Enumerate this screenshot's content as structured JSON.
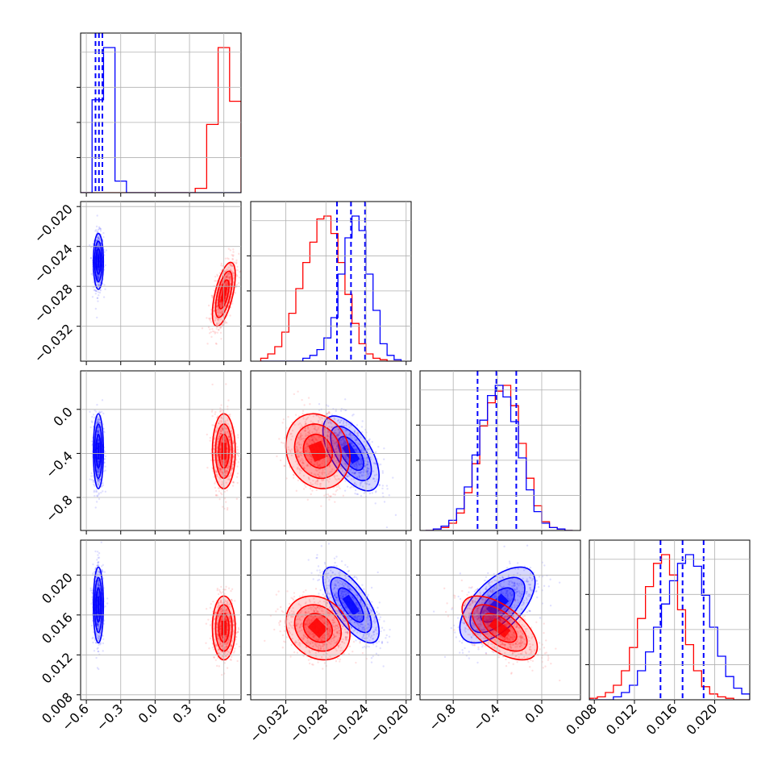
{
  "chart_data": {
    "type": "corner",
    "grid": true,
    "series": [
      {
        "color": "#0000ff"
      },
      {
        "color": "#ff0000"
      }
    ],
    "params": [
      {
        "range": [
          -0.65,
          0.75
        ],
        "ticks": [
          "−0.6",
          "−0.3",
          "0.0",
          "0.3",
          "0.6"
        ],
        "tick_values": [
          -0.6,
          -0.3,
          0.0,
          0.3,
          0.6
        ]
      },
      {
        "range": [
          -0.0355,
          -0.0195
        ],
        "ticks": [
          "−0.032",
          "−0.028",
          "−0.024",
          "−0.020"
        ],
        "tick_values": [
          -0.032,
          -0.028,
          -0.024,
          -0.02
        ]
      },
      {
        "range": [
          -1.1,
          0.35
        ],
        "ticks": [
          "−0.8",
          "−0.4",
          "0.0"
        ],
        "tick_values": [
          -0.8,
          -0.4,
          0.0
        ]
      },
      {
        "range": [
          0.0075,
          0.0235
        ],
        "ticks": [
          "0.008",
          "0.012",
          "0.016",
          "0.020"
        ],
        "tick_values": [
          0.008,
          0.012,
          0.016,
          0.02
        ]
      }
    ],
    "diagonal_histograms": [
      {
        "bins": [
          -0.65,
          -0.55,
          -0.45,
          -0.35,
          -0.25,
          -0.15,
          -0.05,
          0.05,
          0.15,
          0.25,
          0.35,
          0.45,
          0.55,
          0.65,
          0.75
        ],
        "blue": [
          0,
          0.64,
          1.0,
          0.08,
          0,
          0,
          0,
          0,
          0,
          0,
          0,
          0,
          0,
          0
        ],
        "red": [
          0,
          0,
          0,
          0,
          0,
          0,
          0,
          0,
          0,
          0,
          0.03,
          0.47,
          1.0,
          0.63
        ],
        "quantiles": [
          -0.52,
          -0.49,
          -0.46
        ]
      },
      {
        "bins": [
          -0.0345,
          -0.0338,
          -0.0331,
          -0.0324,
          -0.0317,
          -0.031,
          -0.0303,
          -0.0296,
          -0.0289,
          -0.0282,
          -0.0275,
          -0.0268,
          -0.0261,
          -0.0254,
          -0.0247,
          -0.024,
          -0.0233,
          -0.0226,
          -0.0219,
          -0.0212,
          -0.0205
        ],
        "blue": [
          0,
          0,
          0,
          0,
          0,
          0,
          0.02,
          0.04,
          0.08,
          0.16,
          0.3,
          0.6,
          0.85,
          1.0,
          0.9,
          0.6,
          0.35,
          0.12,
          0.04,
          0.01
        ],
        "red": [
          0.02,
          0.05,
          0.1,
          0.2,
          0.33,
          0.5,
          0.68,
          0.82,
          0.98,
          1.0,
          0.88,
          0.68,
          0.46,
          0.26,
          0.12,
          0.05,
          0.02,
          0.01,
          0,
          0
        ],
        "quantiles": [
          -0.0269,
          -0.0255,
          -0.0241
        ]
      },
      {
        "bins": [
          -1.05,
          -0.98,
          -0.91,
          -0.84,
          -0.77,
          -0.7,
          -0.63,
          -0.56,
          -0.49,
          -0.42,
          -0.35,
          -0.28,
          -0.21,
          -0.14,
          -0.07,
          0.0,
          0.07,
          0.14,
          0.21,
          0.28
        ],
        "blue": [
          0,
          0.01,
          0.03,
          0.07,
          0.15,
          0.3,
          0.52,
          0.76,
          0.93,
          1.0,
          0.92,
          0.75,
          0.5,
          0.28,
          0.13,
          0.05,
          0.02,
          0.01,
          0
        ],
        "red": [
          0,
          0.01,
          0.02,
          0.05,
          0.12,
          0.26,
          0.46,
          0.72,
          0.88,
          0.96,
          1.0,
          0.86,
          0.6,
          0.36,
          0.17,
          0.06,
          0.02,
          0.01,
          0
        ],
        "quantiles": [
          -0.58,
          -0.41,
          -0.23
        ]
      },
      {
        "bins": [
          0.0075,
          0.0083,
          0.0091,
          0.0099,
          0.0107,
          0.0115,
          0.0123,
          0.0131,
          0.0139,
          0.0147,
          0.0155,
          0.0163,
          0.0171,
          0.0179,
          0.0187,
          0.0195,
          0.0203,
          0.0211,
          0.0219,
          0.0227,
          0.0235
        ],
        "blue": [
          0,
          0,
          0,
          0.02,
          0.05,
          0.1,
          0.2,
          0.33,
          0.5,
          0.66,
          0.82,
          0.94,
          1.0,
          0.92,
          0.72,
          0.5,
          0.3,
          0.16,
          0.08,
          0.04
        ],
        "red": [
          0.01,
          0.02,
          0.05,
          0.1,
          0.2,
          0.36,
          0.56,
          0.78,
          0.94,
          1.0,
          0.86,
          0.62,
          0.38,
          0.2,
          0.09,
          0.04,
          0.02,
          0.01,
          0,
          0
        ],
        "quantiles": [
          0.0146,
          0.0168,
          0.0189
        ]
      }
    ],
    "pairs": [
      {
        "row": 1,
        "col": 0,
        "blue": {
          "mean": [
            -0.495,
            -0.0255
          ],
          "sd": [
            0.022,
            0.0014
          ],
          "rho": 0.0
        },
        "red": {
          "mean": [
            0.6,
            -0.0288
          ],
          "sd": [
            0.05,
            0.0016
          ],
          "rho": 0.6
        }
      },
      {
        "row": 2,
        "col": 0,
        "blue": {
          "mean": [
            -0.495,
            -0.38
          ],
          "sd": [
            0.022,
            0.17
          ],
          "rho": 0.0
        },
        "red": {
          "mean": [
            0.6,
            -0.38
          ],
          "sd": [
            0.05,
            0.17
          ],
          "rho": 0.0
        }
      },
      {
        "row": 2,
        "col": 1,
        "blue": {
          "mean": [
            -0.0255,
            -0.4
          ],
          "sd": [
            0.0014,
            0.17
          ],
          "rho": -0.6
        },
        "red": {
          "mean": [
            -0.0288,
            -0.38
          ],
          "sd": [
            0.0016,
            0.17
          ],
          "rho": -0.15
        }
      },
      {
        "row": 3,
        "col": 0,
        "blue": {
          "mean": [
            -0.495,
            0.017
          ],
          "sd": [
            0.022,
            0.0019
          ],
          "rho": 0.0
        },
        "red": {
          "mean": [
            0.6,
            0.0147
          ],
          "sd": [
            0.05,
            0.0016
          ],
          "rho": 0.0
        }
      },
      {
        "row": 3,
        "col": 1,
        "blue": {
          "mean": [
            -0.0255,
            0.017
          ],
          "sd": [
            0.0014,
            0.0019
          ],
          "rho": -0.7
        },
        "red": {
          "mean": [
            -0.0288,
            0.0147
          ],
          "sd": [
            0.0016,
            0.0016
          ],
          "rho": -0.2
        }
      },
      {
        "row": 3,
        "col": 2,
        "blue": {
          "mean": [
            -0.4,
            0.017
          ],
          "sd": [
            0.17,
            0.0019
          ],
          "rho": 0.6
        },
        "red": {
          "mean": [
            -0.38,
            0.0147
          ],
          "sd": [
            0.17,
            0.0016
          ],
          "rho": -0.6
        }
      }
    ]
  }
}
